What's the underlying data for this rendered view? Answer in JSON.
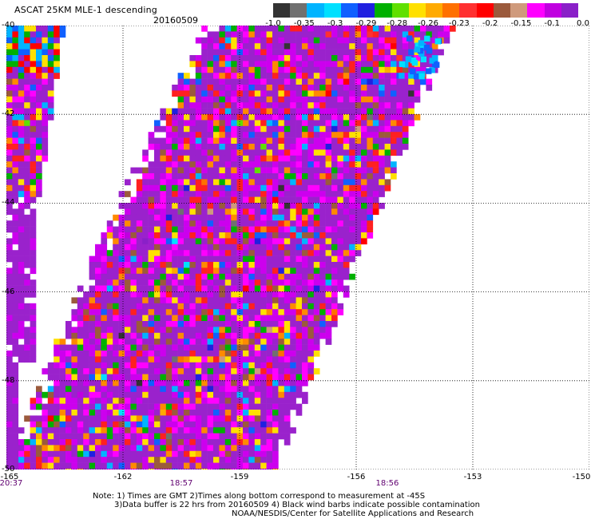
{
  "header": {
    "title": "ASCAT 25KM MLE-1 descending",
    "date": "20160509"
  },
  "colorbar": {
    "colors": [
      "#333333",
      "#707070",
      "#00b4ff",
      "#00e0ff",
      "#1060ff",
      "#2020e0",
      "#00b000",
      "#60e000",
      "#ffe000",
      "#ffaa00",
      "#ff7000",
      "#ff3030",
      "#ff0000",
      "#9b5a3c",
      "#cf9a7c",
      "#ff00ff",
      "#c000e0",
      "#8a20c8"
    ],
    "labels": [
      "-1.0",
      "-0.35",
      "-0.3",
      "-0.29",
      "-0.28",
      "-0.26",
      "-0.23",
      "-0.2",
      "-0.15",
      "-0.1",
      "0.0"
    ]
  },
  "map": {
    "lat_labels": [
      "-40",
      "-42",
      "-44",
      "-46",
      "-48",
      "-50"
    ],
    "lat_range": [
      -40,
      -50
    ],
    "lon_labels": [
      "-165",
      "-162",
      "-159",
      "-156",
      "-153",
      "-150"
    ],
    "lon_range": [
      -165,
      -150
    ],
    "grid": true,
    "time_labels": [
      "20:37",
      "18:57",
      "18:56"
    ],
    "time_label_lons": [
      -165,
      -160.5,
      -155.2
    ]
  },
  "notes": {
    "line1": "Note: 1) Times are GMT 2)Times along bottom correspond to measurement at -45S",
    "line2": "3)Data buffer is 22 hrs from 20160509 4) Black wind barbs indicate possible contamination",
    "line3": "NOAA/NESDIS/Center for Satellite Applications and Research"
  }
}
